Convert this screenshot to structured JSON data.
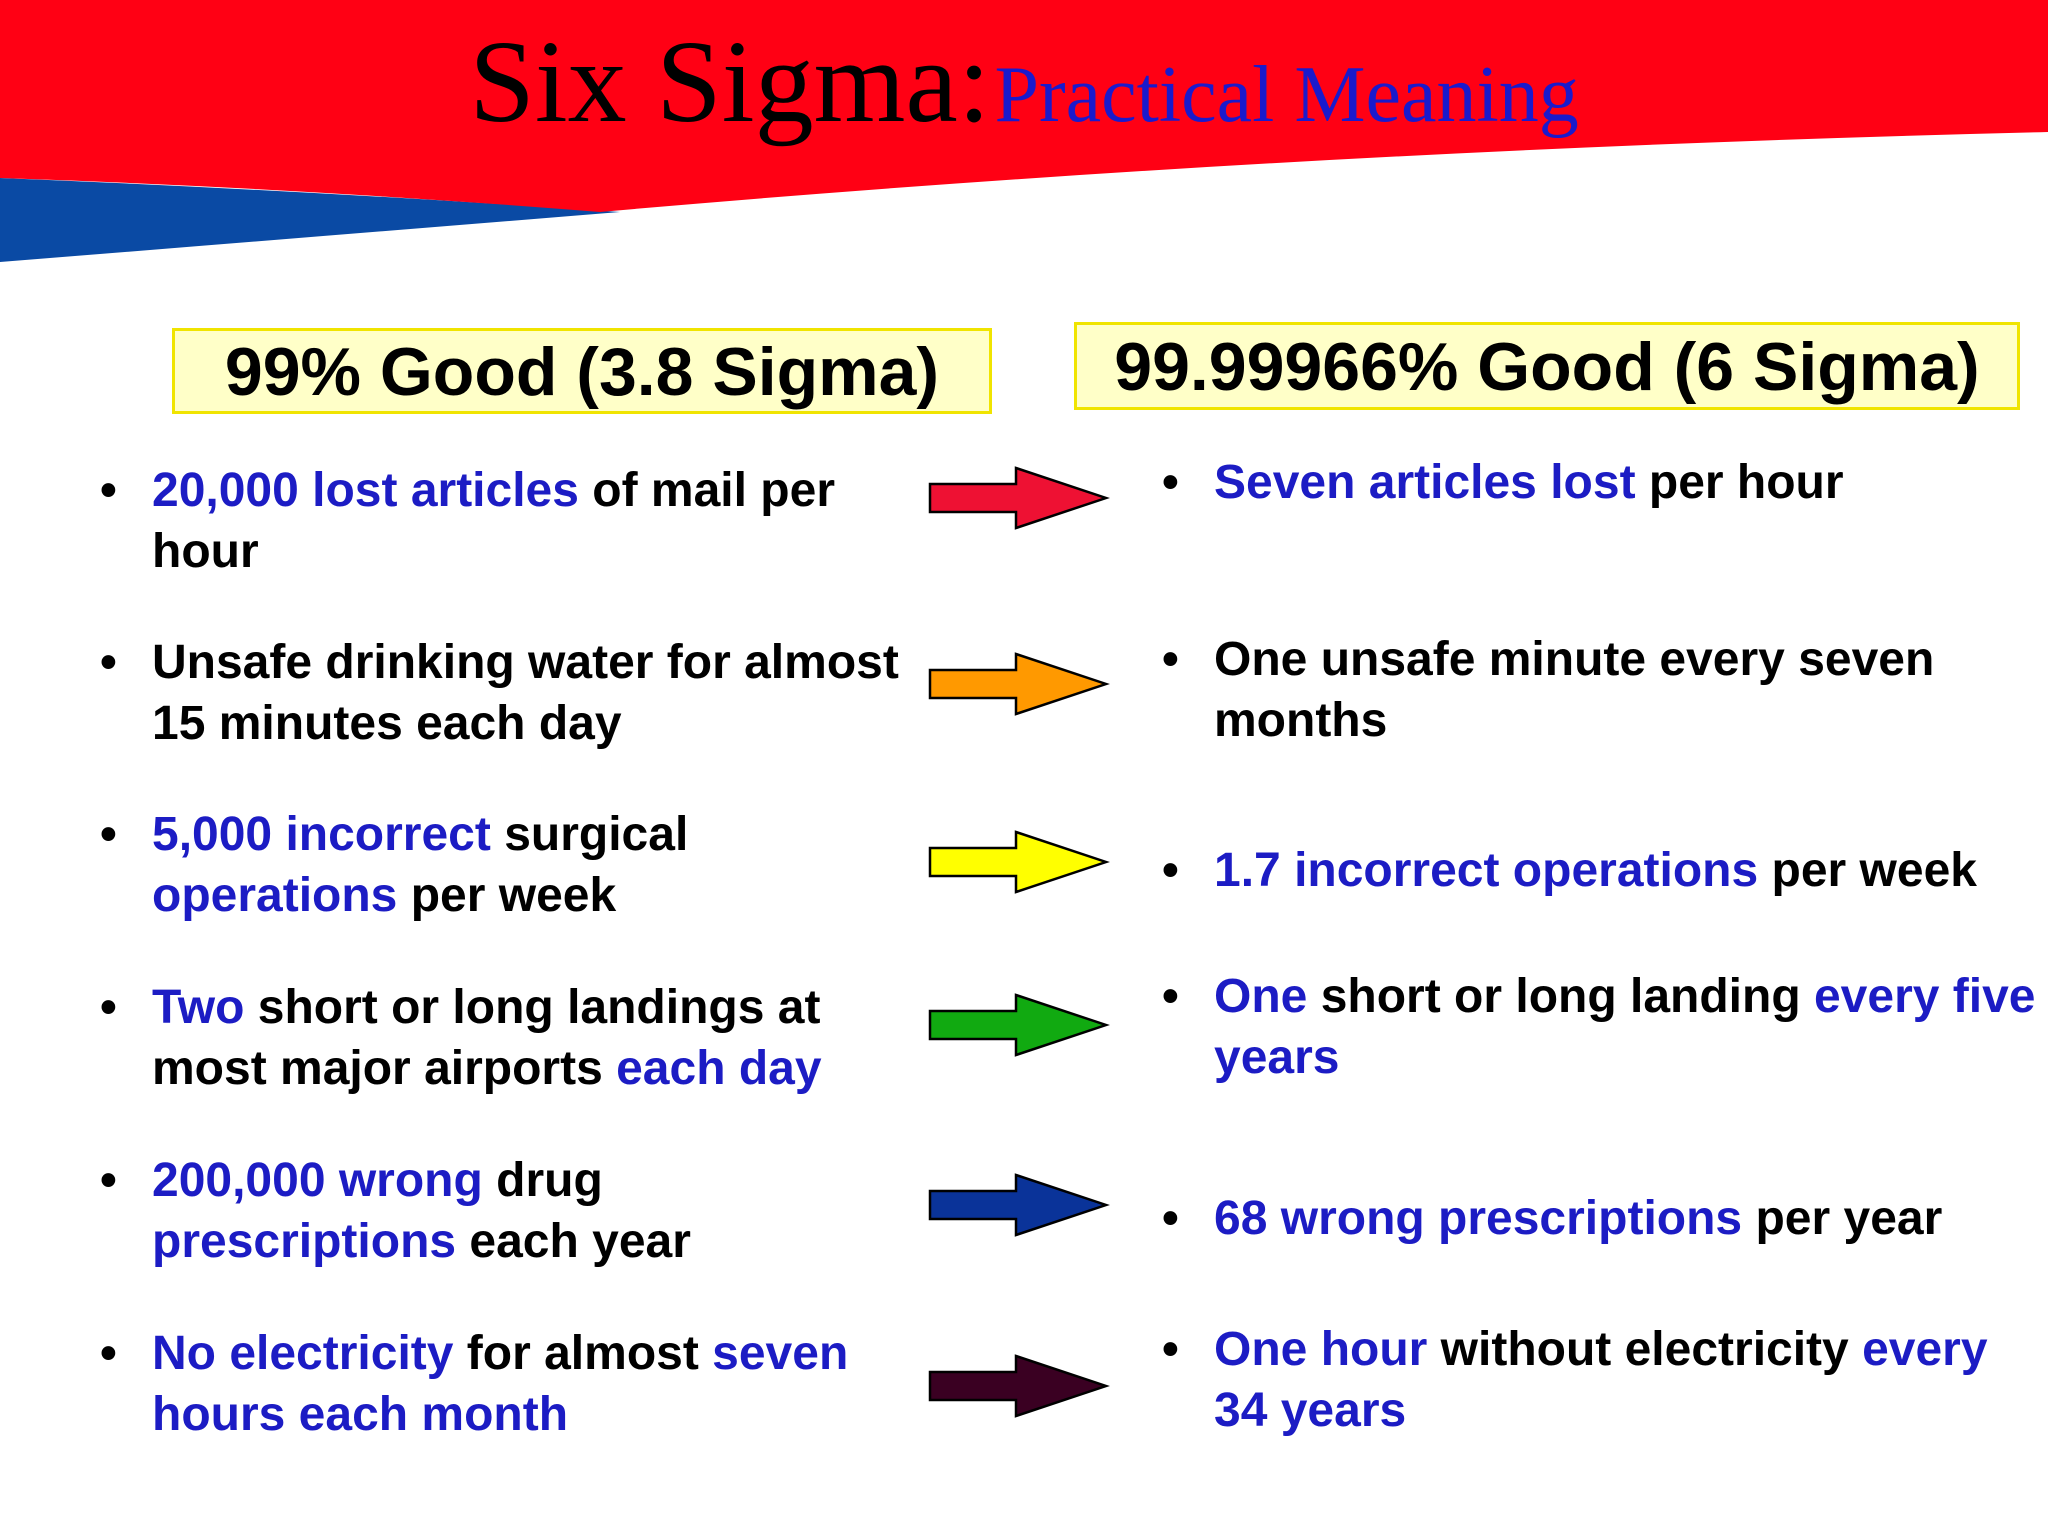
{
  "title": {
    "main": "Six Sigma:",
    "sub": "Practical Meaning"
  },
  "headers": {
    "left": "99% Good (3.8 Sigma)",
    "right": "99.99966% Good (6 Sigma)"
  },
  "bullet": "•",
  "colors": {
    "banner_red": "#ff0014",
    "banner_blue": "#0a4aa4",
    "highlight_text": "#1c1cc4",
    "header_box_fill": "#ffffc8",
    "header_box_border": "#f0e400"
  },
  "comparisons": [
    {
      "arrow_color": "#ee1133",
      "left": [
        {
          "text": "20,000 lost articles",
          "hl": true
        },
        {
          "text": " of mail per hour",
          "hl": false
        }
      ],
      "right": [
        {
          "text": "Seven articles lost",
          "hl": true
        },
        {
          "text": " per hour",
          "hl": false
        }
      ]
    },
    {
      "arrow_color": "#ff9900",
      "left": [
        {
          "text": "Unsafe drinking water for almost 15 minutes each day",
          "hl": false
        }
      ],
      "right": [
        {
          "text": "One unsafe minute every seven months",
          "hl": false
        }
      ]
    },
    {
      "arrow_color": "#ffff00",
      "left": [
        {
          "text": "5,000 incorrect",
          "hl": true
        },
        {
          "text": " surgical ",
          "hl": false
        },
        {
          "text": "operations",
          "hl": true
        },
        {
          "text": " per week",
          "hl": false
        }
      ],
      "right": [
        {
          "text": "1.7 incorrect operations",
          "hl": true
        },
        {
          "text": " per week",
          "hl": false
        }
      ]
    },
    {
      "arrow_color": "#11aa11",
      "left": [
        {
          "text": "Two",
          "hl": true
        },
        {
          "text": " short or long landings at most major airports ",
          "hl": false
        },
        {
          "text": "each day",
          "hl": true
        }
      ],
      "right": [
        {
          "text": "One",
          "hl": true
        },
        {
          "text": " short or long landing ",
          "hl": false
        },
        {
          "text": "every five years",
          "hl": true
        }
      ]
    },
    {
      "arrow_color": "#0a3399",
      "left": [
        {
          "text": "200,000 wrong",
          "hl": true
        },
        {
          "text": " drug ",
          "hl": false
        },
        {
          "text": "prescriptions",
          "hl": true
        },
        {
          "text": " each year",
          "hl": false
        }
      ],
      "right": [
        {
          "text": "68 wrong prescriptions",
          "hl": true
        },
        {
          "text": " per year",
          "hl": false
        }
      ]
    },
    {
      "arrow_color": "#3a0022",
      "left": [
        {
          "text": "No electricity",
          "hl": true
        },
        {
          "text": " for almost ",
          "hl": false
        },
        {
          "text": "seven hours each month",
          "hl": true
        }
      ],
      "right": [
        {
          "text": "One hour",
          "hl": true
        },
        {
          "text": " without electricity ",
          "hl": false
        },
        {
          "text": "every 34 years",
          "hl": true
        }
      ]
    }
  ]
}
